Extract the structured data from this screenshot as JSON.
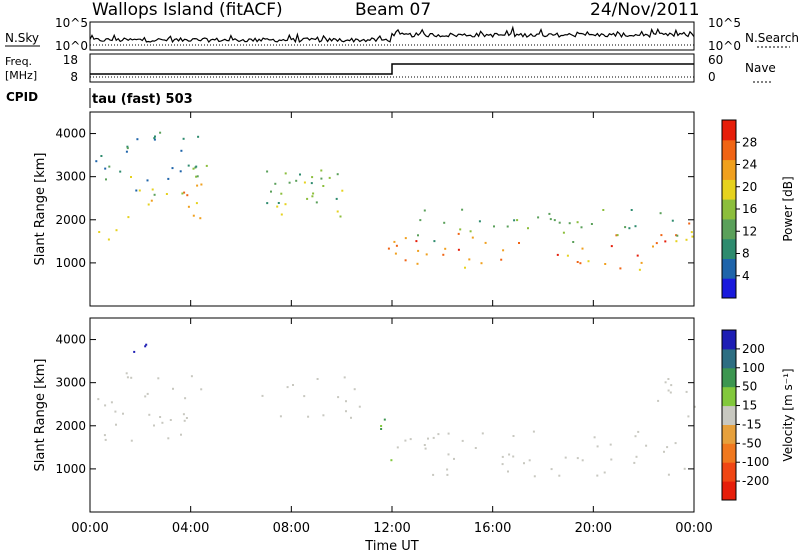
{
  "header": {
    "site": "Wallops Island (fitACF)",
    "beam": "Beam 07",
    "date": "24/Nov/2011"
  },
  "strips": {
    "nsky_label": "N.Sky",
    "nsearch_label": "N.Search",
    "freq_label_top": "Freq.",
    "freq_label_bottom": "[MHz]",
    "nave_label": "Nave",
    "cpid_label": "CPID",
    "cpid_value": "tau (fast) 503",
    "nsky_ticks": [
      "10^5",
      "10^0"
    ],
    "nsearch_ticks": [
      "10^5",
      "10^0"
    ],
    "freq_ticks": [
      "18",
      "8"
    ],
    "nave_ticks": [
      "60",
      "0"
    ]
  },
  "xaxis": {
    "label": "Time UT",
    "ticks": [
      "00:00",
      "04:00",
      "08:00",
      "12:00",
      "16:00",
      "20:00",
      "00:00"
    ]
  },
  "panels": {
    "power": {
      "ylabel": "Slant Range [km]",
      "cbar_label": "Power [dB]"
    },
    "velocity": {
      "ylabel": "Slant Range [km]",
      "cbar_label": "Velocity [m s⁻¹]"
    }
  },
  "chart_data": [
    {
      "type": "heatmap",
      "title": "",
      "quantity": "Power",
      "xlabel": "Time UT",
      "ylabel": "Slant Range [km]",
      "xlim_hours": [
        0,
        24
      ],
      "ylim_km": [
        0,
        4500
      ],
      "yticks": [
        1000,
        2000,
        3000,
        4000
      ],
      "colorbar": {
        "label": "Power [dB]",
        "ticks": [
          4,
          8,
          12,
          16,
          20,
          24,
          28
        ],
        "colors": [
          "#1a1adc",
          "#1e64aa",
          "#2e8b6e",
          "#5aa05a",
          "#8cbe3c",
          "#e6d21e",
          "#f0a01e",
          "#f06414",
          "#e61e0a"
        ]
      },
      "regions": [
        {
          "t0": 0.2,
          "t1": 1.6,
          "r0": 1450,
          "r1": 2000,
          "level": 20
        },
        {
          "t0": 1.2,
          "t1": 4.6,
          "r0": 2000,
          "r1": 3100,
          "level": 22
        },
        {
          "t0": 2.5,
          "t1": 4.8,
          "r0": 2600,
          "r1": 3400,
          "level": 14
        },
        {
          "t0": 6.8,
          "t1": 10.2,
          "r0": 2000,
          "r1": 3300,
          "level": 18
        },
        {
          "t0": 7.0,
          "t1": 10.8,
          "r0": 2400,
          "r1": 3200,
          "level": 12
        },
        {
          "t0": 11.6,
          "t1": 23.6,
          "r0": 850,
          "r1": 1700,
          "level": 26
        },
        {
          "t0": 12.4,
          "t1": 23.6,
          "r0": 1500,
          "r1": 2300,
          "level": 12
        },
        {
          "t0": 22.5,
          "t1": 24.0,
          "r0": 1300,
          "r1": 2300,
          "level": 24
        },
        {
          "t0": 0.2,
          "t1": 4.5,
          "r0": 2600,
          "r1": 4100,
          "level": 8
        }
      ]
    },
    {
      "type": "heatmap",
      "title": "",
      "quantity": "Velocity",
      "xlabel": "Time UT",
      "ylabel": "Slant Range [km]",
      "xlim_hours": [
        0,
        24
      ],
      "ylim_km": [
        0,
        4500
      ],
      "yticks": [
        1000,
        2000,
        3000,
        4000
      ],
      "colorbar": {
        "label": "Velocity [m s⁻¹]",
        "ticks": [
          200,
          100,
          50,
          15,
          -15,
          -50,
          -100,
          -200
        ],
        "colors": [
          "#1e1eb4",
          "#2d6e82",
          "#3c9650",
          "#82c83c",
          "#c8c8c0",
          "#e6a03c",
          "#f0781e",
          "#f04614",
          "#e61e0a"
        ]
      },
      "regions": [
        {
          "t0": 0.2,
          "t1": 4.6,
          "r0": 1600,
          "r1": 3300,
          "level": 0
        },
        {
          "t0": 6.8,
          "t1": 10.8,
          "r0": 2200,
          "r1": 3200,
          "level": 0
        },
        {
          "t0": 11.5,
          "t1": 12.3,
          "r0": 1000,
          "r1": 2300,
          "level": 30
        },
        {
          "t0": 12.0,
          "t1": 23.6,
          "r0": 850,
          "r1": 1900,
          "level": 0
        },
        {
          "t0": 0.8,
          "t1": 2.8,
          "r0": 3600,
          "r1": 4000,
          "level": 200
        },
        {
          "t0": 22.5,
          "t1": 24.0,
          "r0": 1500,
          "r1": 3200,
          "level": 0
        }
      ]
    }
  ]
}
